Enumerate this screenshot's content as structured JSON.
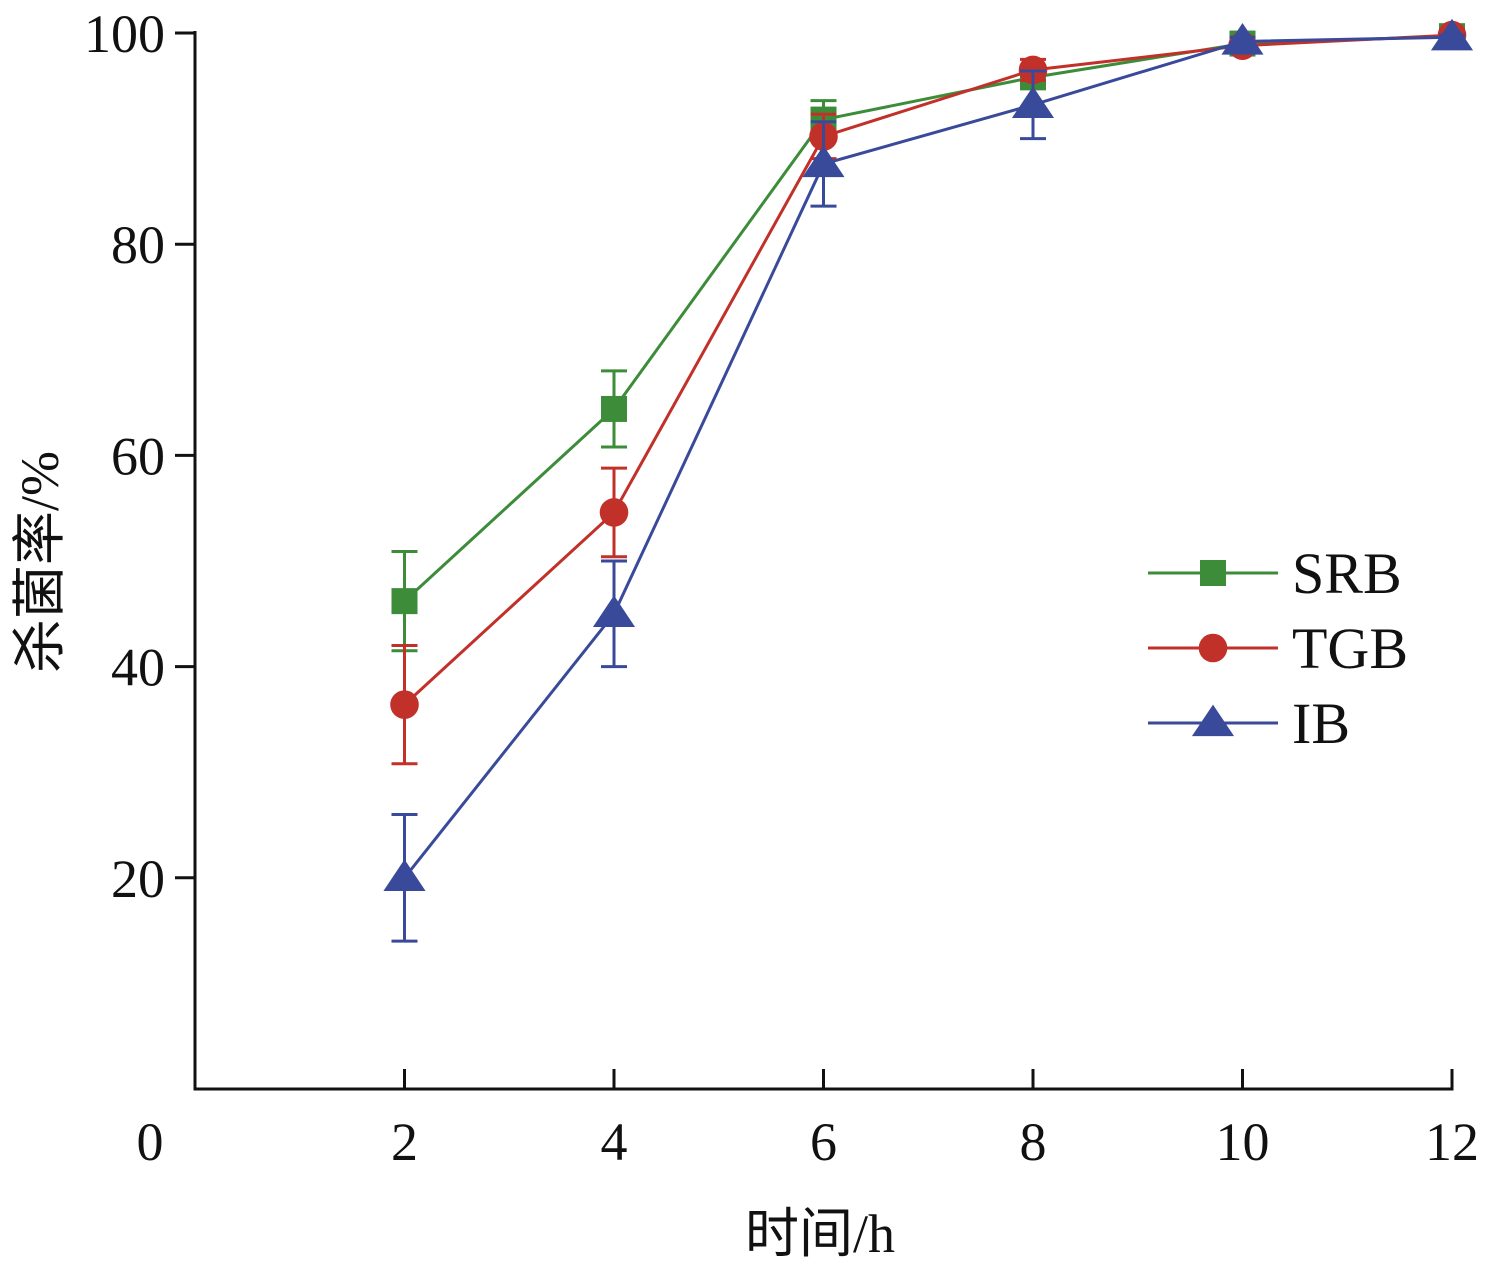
{
  "colors": {
    "axis": "#111111",
    "srb": "#3d8c3a",
    "tgb": "#c1312a",
    "ib": "#3a4a9a"
  },
  "chart_data": {
    "type": "line",
    "title": "",
    "xlabel": "时间/h",
    "ylabel": "杀菌率/%",
    "xlim": [
      0,
      12
    ],
    "ylim": [
      0,
      100
    ],
    "x_ticks": [
      "0",
      "2",
      "4",
      "6",
      "8",
      "10",
      "12"
    ],
    "y_ticks": [
      "20",
      "40",
      "60",
      "80",
      "100"
    ],
    "x": [
      2,
      4,
      6,
      8,
      10,
      12
    ],
    "grid": false,
    "legend_position": "right",
    "series": [
      {
        "name": "SRB",
        "marker": "square",
        "color": "#3d8c3a",
        "values": [
          46.2,
          64.4,
          91.8,
          95.8,
          99.0,
          99.7
        ],
        "errors": [
          4.7,
          3.6,
          1.8,
          1.0,
          0.4,
          0.2
        ]
      },
      {
        "name": "TGB",
        "marker": "circle",
        "color": "#c1312a",
        "values": [
          36.4,
          54.6,
          90.2,
          96.5,
          98.8,
          99.8
        ],
        "errors": [
          5.6,
          4.2,
          2.1,
          1.0,
          0.5,
          0.2
        ]
      },
      {
        "name": "IB",
        "marker": "triangle",
        "color": "#3a4a9a",
        "values": [
          20.0,
          45.0,
          87.6,
          93.2,
          99.2,
          99.6
        ],
        "errors": [
          6.0,
          5.0,
          4.0,
          3.2,
          0.4,
          0.2
        ]
      }
    ]
  }
}
